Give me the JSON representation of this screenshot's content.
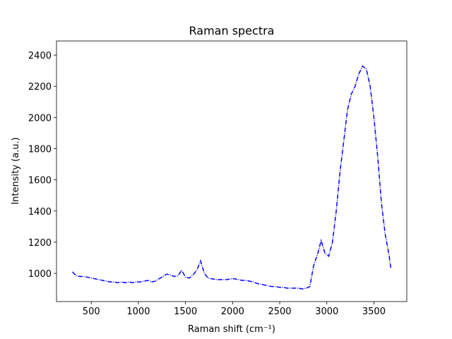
{
  "chart_data": {
    "type": "line",
    "title": "Raman spectra",
    "xlabel": "Raman shift (cm⁻¹)",
    "ylabel": "Intensity (a.u.)",
    "x": [
      300,
      340,
      380,
      420,
      460,
      500,
      540,
      580,
      620,
      660,
      700,
      740,
      780,
      820,
      860,
      900,
      940,
      980,
      1020,
      1060,
      1100,
      1140,
      1180,
      1220,
      1260,
      1300,
      1340,
      1380,
      1420,
      1460,
      1500,
      1540,
      1580,
      1620,
      1660,
      1700,
      1740,
      1780,
      1820,
      1860,
      1900,
      1940,
      1980,
      2020,
      2060,
      2100,
      2140,
      2180,
      2220,
      2260,
      2300,
      2340,
      2380,
      2420,
      2460,
      2500,
      2540,
      2580,
      2620,
      2660,
      2700,
      2740,
      2780,
      2820,
      2860,
      2900,
      2940,
      2980,
      3020,
      3060,
      3100,
      3140,
      3180,
      3220,
      3260,
      3300,
      3340,
      3380,
      3420,
      3460,
      3500,
      3540,
      3580,
      3620,
      3660,
      3680
    ],
    "values": [
      1010,
      985,
      980,
      980,
      975,
      970,
      965,
      960,
      955,
      950,
      945,
      945,
      940,
      945,
      940,
      945,
      940,
      945,
      945,
      950,
      955,
      945,
      950,
      965,
      980,
      995,
      990,
      980,
      985,
      1020,
      975,
      970,
      990,
      1020,
      1080,
      1000,
      970,
      965,
      960,
      960,
      960,
      960,
      965,
      965,
      960,
      955,
      955,
      950,
      945,
      935,
      930,
      925,
      920,
      915,
      915,
      910,
      910,
      905,
      905,
      905,
      905,
      900,
      905,
      915,
      1050,
      1120,
      1210,
      1130,
      1110,
      1200,
      1400,
      1650,
      1850,
      2050,
      2150,
      2200,
      2280,
      2330,
      2310,
      2200,
      2000,
      1750,
      1450,
      1250,
      1120,
      1030
    ],
    "color": "#0000ff",
    "linestyle": "dashdot",
    "xlim": [
      131,
      3849
    ],
    "ylim": [
      819,
      2491
    ],
    "xticks": [
      500,
      1000,
      1500,
      2000,
      2500,
      3000,
      3500
    ],
    "yticks": [
      1000,
      1200,
      1400,
      1600,
      1800,
      2000,
      2200,
      2400
    ]
  }
}
